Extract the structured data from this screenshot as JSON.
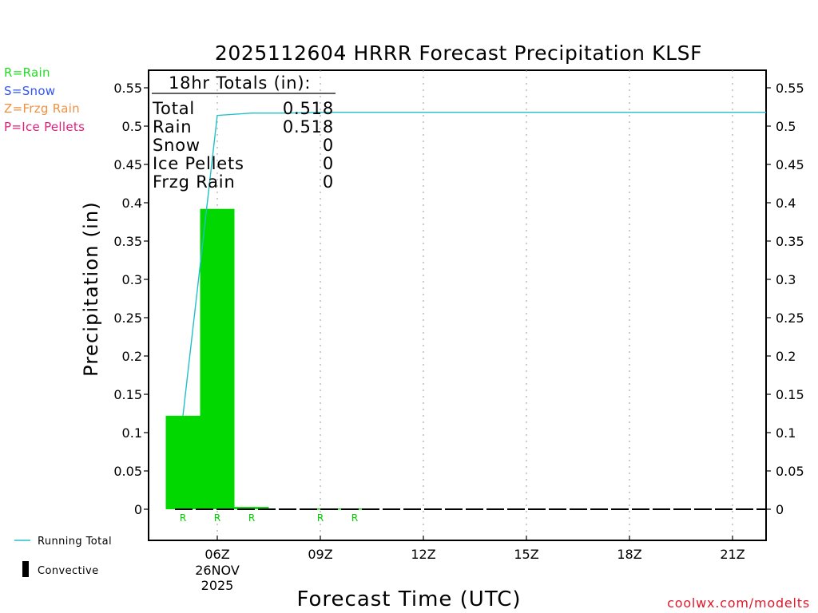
{
  "chart_data": {
    "type": "bar",
    "title": "2025112604 HRRR Forecast Precipitation KLSF",
    "xlabel": "Forecast Time (UTC)",
    "ylabel": "Precipitation (in)",
    "ylim": [
      -0.04,
      0.57
    ],
    "yticks": [
      "0",
      "0.05",
      "0.1",
      "0.15",
      "0.2",
      "0.25",
      "0.3",
      "0.35",
      "0.4",
      "0.45",
      "0.5",
      "0.55"
    ],
    "xlim_hours": [
      4.1,
      22.1
    ],
    "xticks": [
      {
        "hour": 6,
        "label": "06Z",
        "sub1": "26NOV",
        "sub2": "2025"
      },
      {
        "hour": 9,
        "label": "09Z"
      },
      {
        "hour": 12,
        "label": "12Z"
      },
      {
        "hour": 15,
        "label": "15Z"
      },
      {
        "hour": 18,
        "label": "18Z"
      },
      {
        "hour": 21,
        "label": "21Z"
      }
    ],
    "bars": [
      {
        "hour_start": 4.5,
        "hour_end": 5.5,
        "value": 0.122,
        "type": "R"
      },
      {
        "hour_start": 5.5,
        "hour_end": 6.5,
        "value": 0.392,
        "type": "R"
      },
      {
        "hour_start": 6.5,
        "hour_end": 7.5,
        "value": 0.003,
        "type": "R"
      },
      {
        "hour_start": 7.5,
        "hour_end": 8.5,
        "value": 0.0,
        "type": ""
      },
      {
        "hour_start": 8.5,
        "hour_end": 9.5,
        "value": 0.001,
        "type": "R"
      },
      {
        "hour_start": 9.5,
        "hour_end": 10.5,
        "value": 0.001,
        "type": "R"
      }
    ],
    "running_total": {
      "name": "Running Total",
      "x": [
        5,
        6,
        7,
        8,
        9,
        10,
        11,
        12,
        13,
        14,
        15,
        16,
        17,
        18,
        19,
        20,
        21,
        22.1
      ],
      "y": [
        0.122,
        0.514,
        0.517,
        0.517,
        0.518,
        0.518,
        0.518,
        0.518,
        0.518,
        0.518,
        0.518,
        0.518,
        0.518,
        0.518,
        0.518,
        0.518,
        0.518,
        0.518
      ]
    },
    "convective": {
      "name": "Convective",
      "start_hour": 5,
      "end_hour": 22,
      "value": 0
    },
    "colors": {
      "rain": "#00d800",
      "running_total": "#20c0c8",
      "convective": "#000000"
    }
  },
  "totals_box": {
    "header": "18hr Totals (in):",
    "rows": [
      {
        "label": "Total",
        "value": "0.518"
      },
      {
        "label": "Rain",
        "value": "0.518"
      },
      {
        "label": "Snow",
        "value": "0"
      },
      {
        "label": "Ice Pellets",
        "value": "0"
      },
      {
        "label": "Frzg Rain",
        "value": "0"
      }
    ]
  },
  "ptype_legend": [
    {
      "text": "R=Rain",
      "color": "#22dd22"
    },
    {
      "text": "S=Snow",
      "color": "#3355ee"
    },
    {
      "text": "Z=Frzg Rain",
      "color": "#f09040"
    },
    {
      "text": "P=Ice Pellets",
      "color": "#e0207a"
    }
  ],
  "series_legend": {
    "running_total": "Running Total",
    "convective": "Convective"
  },
  "credit": "coolwx.com/modelts"
}
